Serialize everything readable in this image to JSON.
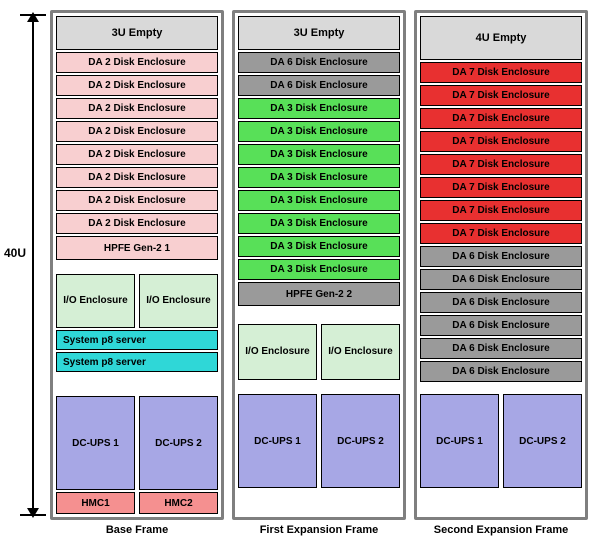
{
  "colors": {
    "frame_border": "#7f7f7f",
    "empty": "#d9d9d9",
    "da2": "#f8cfd0",
    "da3": "#58e058",
    "da6": "#9a9a9a",
    "da7": "#e83030",
    "hpfe_base": "#f8cfd0",
    "hpfe_exp": "#9a9a9a",
    "io_enclosure": "#d5efd5",
    "server": "#2fd7d7",
    "dcups": "#a7a7e5",
    "hmc": "#f59090"
  },
  "height_label": "40U",
  "frames": [
    {
      "label": "Base Frame",
      "empty": {
        "label": "3U Empty",
        "class": "empty",
        "color_key": "empty"
      },
      "disks": [
        {
          "label": "DA 2 Disk Enclosure",
          "color_key": "da2"
        },
        {
          "label": "DA 2 Disk Enclosure",
          "color_key": "da2"
        },
        {
          "label": "DA 2 Disk Enclosure",
          "color_key": "da2"
        },
        {
          "label": "DA 2 Disk Enclosure",
          "color_key": "da2"
        },
        {
          "label": "DA 2 Disk Enclosure",
          "color_key": "da2"
        },
        {
          "label": "DA 2 Disk Enclosure",
          "color_key": "da2"
        },
        {
          "label": "DA 2 Disk Enclosure",
          "color_key": "da2"
        },
        {
          "label": "DA 2 Disk Enclosure",
          "color_key": "da2"
        }
      ],
      "hpfe": {
        "label": "HPFE Gen-2 1",
        "color_key": "hpfe_base"
      },
      "io_pair": {
        "left": "I/O Enclosure",
        "right": "I/O Enclosure",
        "color_key": "io_enclosure"
      },
      "servers": [
        {
          "label": "System p8 server",
          "color_key": "server"
        },
        {
          "label": "System p8 server",
          "color_key": "server"
        }
      ],
      "dcups": {
        "left": "DC-UPS 1",
        "right": "DC-UPS 2",
        "color_key": "dcups"
      },
      "hmc": {
        "left": "HMC1",
        "right": "HMC2",
        "color_key": "hmc"
      }
    },
    {
      "label": "First Expansion Frame",
      "empty": {
        "label": "3U Empty",
        "class": "empty",
        "color_key": "empty"
      },
      "disks": [
        {
          "label": "DA 6 Disk Enclosure",
          "color_key": "da6"
        },
        {
          "label": "DA 6 Disk Enclosure",
          "color_key": "da6"
        },
        {
          "label": "DA 3 Disk Enclosure",
          "color_key": "da3"
        },
        {
          "label": "DA 3 Disk Enclosure",
          "color_key": "da3"
        },
        {
          "label": "DA 3 Disk Enclosure",
          "color_key": "da3"
        },
        {
          "label": "DA 3 Disk Enclosure",
          "color_key": "da3"
        },
        {
          "label": "DA 3 Disk Enclosure",
          "color_key": "da3"
        },
        {
          "label": "DA 3 Disk Enclosure",
          "color_key": "da3"
        },
        {
          "label": "DA 3 Disk Enclosure",
          "color_key": "da3"
        },
        {
          "label": "DA 3 Disk Enclosure",
          "color_key": "da3"
        }
      ],
      "hpfe": {
        "label": "HPFE Gen-2  2",
        "color_key": "hpfe_exp"
      },
      "io_pair": {
        "left": "I/O Enclosure",
        "right": "I/O Enclosure",
        "color_key": "io_enclosure"
      },
      "dcups": {
        "left": "DC-UPS 1",
        "right": "DC-UPS 2",
        "color_key": "dcups"
      }
    },
    {
      "label": "Second Expansion Frame",
      "empty": {
        "label": "4U Empty",
        "class": "empty4",
        "color_key": "empty"
      },
      "disks": [
        {
          "label": "DA 7 Disk Enclosure",
          "color_key": "da7"
        },
        {
          "label": "DA 7 Disk Enclosure",
          "color_key": "da7"
        },
        {
          "label": "DA 7 Disk Enclosure",
          "color_key": "da7"
        },
        {
          "label": "DA 7 Disk Enclosure",
          "color_key": "da7"
        },
        {
          "label": "DA 7 Disk Enclosure",
          "color_key": "da7"
        },
        {
          "label": "DA 7 Disk Enclosure",
          "color_key": "da7"
        },
        {
          "label": "DA 7 Disk Enclosure",
          "color_key": "da7"
        },
        {
          "label": "DA 7 Disk Enclosure",
          "color_key": "da7"
        },
        {
          "label": "DA 6 Disk Enclosure",
          "color_key": "da6"
        },
        {
          "label": "DA 6 Disk Enclosure",
          "color_key": "da6"
        },
        {
          "label": "DA 6 Disk Enclosure",
          "color_key": "da6"
        },
        {
          "label": "DA 6 Disk Enclosure",
          "color_key": "da6"
        },
        {
          "label": "DA 6 Disk Enclosure",
          "color_key": "da6"
        },
        {
          "label": "DA 6 Disk Enclosure",
          "color_key": "da6"
        }
      ],
      "dcups": {
        "left": "DC-UPS 1",
        "right": "DC-UPS 2",
        "color_key": "dcups"
      }
    }
  ]
}
